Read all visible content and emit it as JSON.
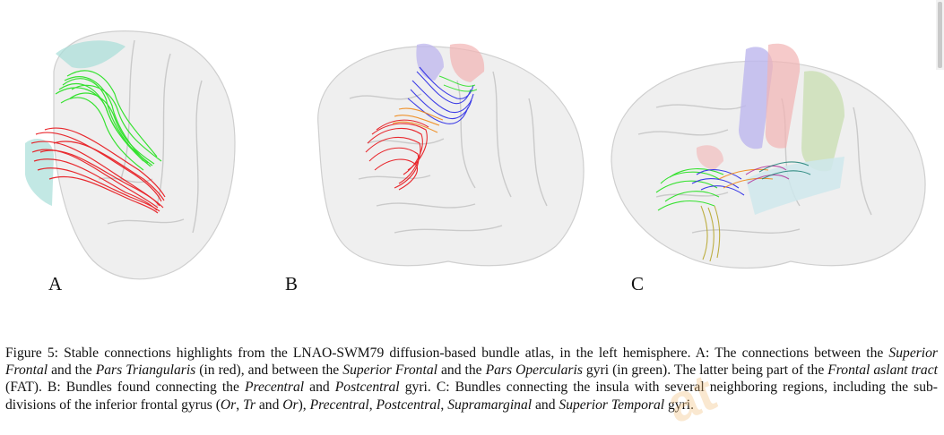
{
  "panels": [
    {
      "label": "A"
    },
    {
      "label": "B"
    },
    {
      "label": "C"
    }
  ],
  "caption": {
    "s01": "Figure 5: Stable connections highlights from the LNAO-SWM79 diffusion-based bundle atlas, in the left hemisphere. A: The connections between the ",
    "s02": "Superior Frontal",
    "s03": " and the ",
    "s04": "Pars Triangularis",
    "s05": " (in red), and between the ",
    "s06": "Superior Frontal",
    "s07": " and the ",
    "s08": "Pars Opercularis",
    "s09": " gyri (in green). The latter being part of the ",
    "s10": "Frontal aslant tract",
    "s11": " (FAT). B: Bundles found connecting the ",
    "s12": "Precentral",
    "s13": " and ",
    "s14": "Postcentral",
    "s15": " gyri.  C: Bundles connecting the insula with several neighboring regions, including the sub-divisions of the inferior frontal gyrus (",
    "s16": "Or",
    "s17": ", ",
    "s18": "Tr",
    "s19": " and ",
    "s20": "Or",
    "s21": "), ",
    "s22": "Precentral",
    "s23": ", ",
    "s24": "Postcentral",
    "s25": ", ",
    "s26": "Supramarginal",
    "s27": " and ",
    "s28": "Superior Temporal",
    "s29": " gyri."
  },
  "colors": {
    "brain_surface": "#efefef",
    "sulci_lines": "#c8c8c8",
    "bundle_red": "#e8141a",
    "bundle_green": "#22e01c",
    "bundle_blue": "#2a2ae6",
    "bundle_orange": "#f08a1a",
    "bundle_olive": "#b8a830",
    "region_cyan": "#a8ded8",
    "region_pink": "#f2b4b4",
    "region_lavender": "#bdb6ee",
    "region_sage": "#c8ddb0",
    "region_lightblue": "#cfe8ec"
  }
}
